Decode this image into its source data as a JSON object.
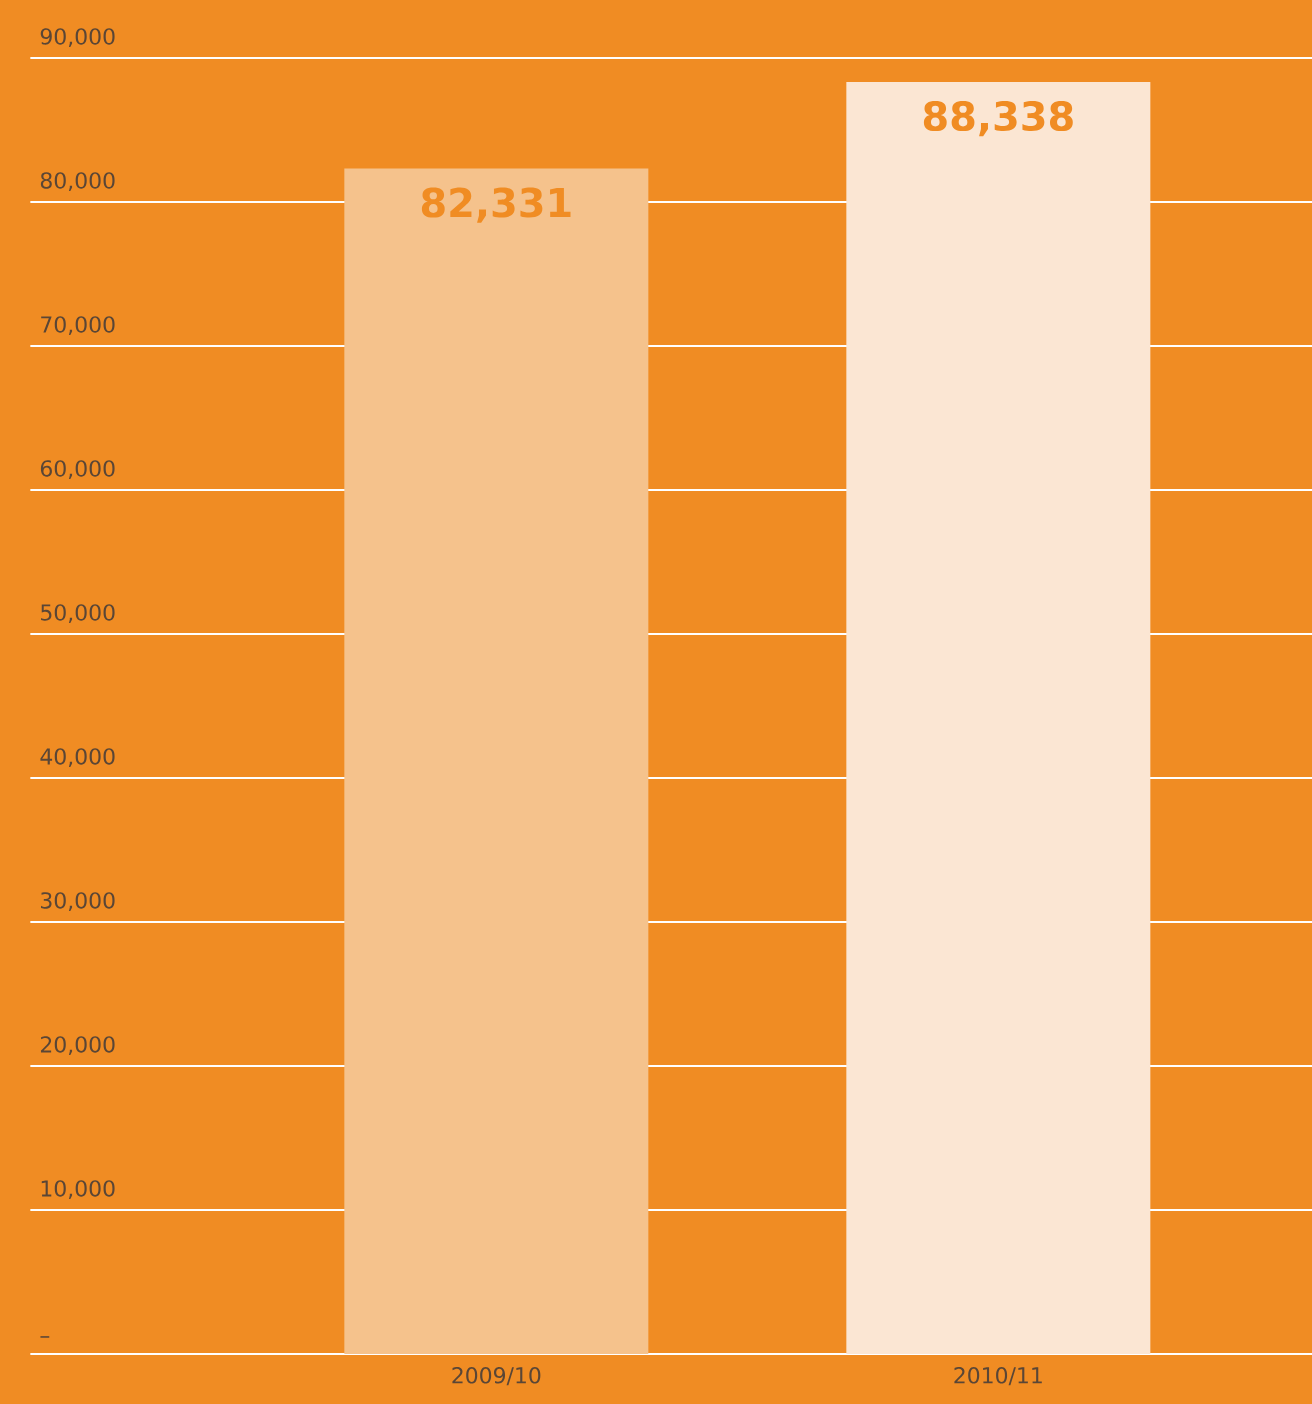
{
  "chart_data": {
    "type": "bar",
    "categories": [
      "2009/10",
      "2010/11"
    ],
    "values": [
      82331,
      88338
    ],
    "colors": [
      "#f5c28c",
      "#fbe6d3"
    ],
    "value_labels": [
      "82,331",
      "88,338"
    ],
    "ylim": [
      0,
      90000
    ],
    "yticks": [
      {
        "value": 0,
        "label": "–"
      },
      {
        "value": 10000,
        "label": "10,000"
      },
      {
        "value": 20000,
        "label": "20,000"
      },
      {
        "value": 30000,
        "label": "30,000"
      },
      {
        "value": 40000,
        "label": "40,000"
      },
      {
        "value": 50000,
        "label": "50,000"
      },
      {
        "value": 60000,
        "label": "60,000"
      },
      {
        "value": 70000,
        "label": "70,000"
      },
      {
        "value": 80000,
        "label": "80,000"
      },
      {
        "value": 90000,
        "label": "90,000"
      }
    ],
    "grid": "y"
  }
}
